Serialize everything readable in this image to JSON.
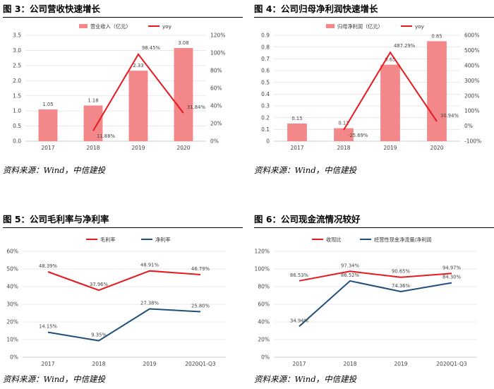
{
  "panels": [
    {
      "title": "图 3：公司营收快速增长",
      "source": "资料来源：Wind，中信建投",
      "chart_data": {
        "type": "bar",
        "categories": [
          "2017",
          "2018",
          "2019",
          "2020"
        ],
        "series": [
          {
            "name": "营业收入（亿元）",
            "type": "bar",
            "axis": "left",
            "color": "#f4878a",
            "values": [
              1.05,
              1.18,
              2.33,
              3.08
            ],
            "labels": [
              "1.05",
              "1.18",
              "2.33",
              "3.08"
            ]
          },
          {
            "name": "yoy",
            "type": "line",
            "axis": "right",
            "color": "#e8191e",
            "values": [
              null,
              11.88,
              98.45,
              31.84
            ],
            "labels": [
              "",
              "11.88%",
              "98.45%",
              "31.84%"
            ]
          }
        ],
        "y_left": {
          "min": 0,
          "max": 3.5,
          "step": 0.5,
          "ticks": [
            "0.0",
            "0.5",
            "1.0",
            "1.5",
            "2.0",
            "2.5",
            "3.0",
            "3.5"
          ]
        },
        "y_right": {
          "min": 0,
          "max": 120,
          "step": 20,
          "ticks": [
            "0%",
            "20%",
            "40%",
            "60%",
            "80%",
            "100%",
            "120%"
          ]
        },
        "grid": true,
        "legend": "top"
      }
    },
    {
      "title": "图 4：公司归母净利润快速增长",
      "source": "资料来源：Wind，中信建投",
      "chart_data": {
        "type": "bar",
        "categories": [
          "2017",
          "2018",
          "2019",
          "2020"
        ],
        "series": [
          {
            "name": "归母净利润（亿元）",
            "type": "bar",
            "axis": "left",
            "color": "#f4878a",
            "values": [
              0.15,
              0.11,
              0.65,
              0.85
            ],
            "labels": [
              "0.15",
              "0.11",
              "0.65",
              "0.85"
            ]
          },
          {
            "name": "yoy",
            "type": "line",
            "axis": "right",
            "color": "#e8191e",
            "values": [
              null,
              -25.69,
              487.29,
              30.94
            ],
            "labels": [
              "",
              "-25.69%",
              "487.29%",
              "30.94%"
            ]
          }
        ],
        "y_left": {
          "min": 0,
          "max": 0.9,
          "step": 0.1,
          "ticks": [
            "0",
            "0.1",
            "0.2",
            "0.3",
            "0.4",
            "0.5",
            "0.6",
            "0.7",
            "0.8",
            "0.9"
          ]
        },
        "y_right": {
          "min": -100,
          "max": 600,
          "step": 100,
          "ticks": [
            "-100%",
            "0%",
            "100%",
            "200%",
            "300%",
            "400%",
            "500%",
            "600%"
          ]
        },
        "grid": true,
        "legend": "top"
      }
    },
    {
      "title": "图 5：公司毛利率与净利率",
      "source": "资料来源：Wind，中信建投",
      "chart_data": {
        "type": "line",
        "categories": [
          "2017",
          "2018",
          "2019",
          "2020Q1-Q3"
        ],
        "series": [
          {
            "name": "毛利率",
            "color": "#e8191e",
            "values": [
              48.39,
              37.96,
              48.91,
              46.79
            ],
            "labels": [
              "48.39%",
              "37.96%",
              "48.91%",
              "46.79%"
            ]
          },
          {
            "name": "净利率",
            "color": "#1f4e79",
            "values": [
              14.15,
              9.35,
              27.38,
              25.8
            ],
            "labels": [
              "14.15%",
              "9.35%",
              "27.38%",
              "25.80%"
            ]
          }
        ],
        "y_left": {
          "min": 0,
          "max": 60,
          "step": 10,
          "ticks": [
            "0%",
            "10%",
            "20%",
            "30%",
            "40%",
            "50%",
            "60%"
          ]
        },
        "grid": true,
        "legend": "top"
      }
    },
    {
      "title": "图 6：公司现金流情况较好",
      "source": "资料来源：Wind，中信建投",
      "chart_data": {
        "type": "line",
        "categories": [
          "2017",
          "2018",
          "2019",
          "2020Q1-Q3"
        ],
        "series": [
          {
            "name": "收现比",
            "color": "#e8191e",
            "values": [
              86.53,
              97.34,
              90.65,
              94.97
            ],
            "labels": [
              "86.53%",
              "97.34%",
              "90.65%",
              "94.97%"
            ]
          },
          {
            "name": "经营性现金净流量/净利润",
            "color": "#1f4e79",
            "values": [
              34.94,
              86.52,
              74.36,
              84.3
            ],
            "labels": [
              "34.94%",
              "86.52%",
              "74.36%",
              "84.30%"
            ]
          }
        ],
        "y_left": {
          "min": 0,
          "max": 120,
          "step": 20,
          "ticks": [
            "0%",
            "20%",
            "40%",
            "60%",
            "80%",
            "100%",
            "120%"
          ]
        },
        "grid": true,
        "legend": "top"
      }
    }
  ]
}
